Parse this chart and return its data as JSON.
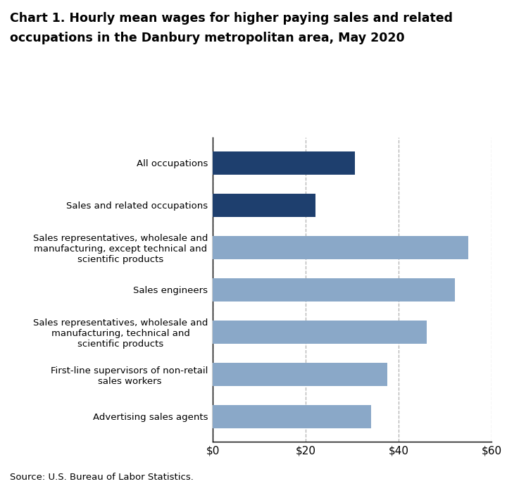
{
  "title_line1": "Chart 1. Hourly mean wages for higher paying sales and related",
  "title_line2": "occupations in the Danbury metropolitan area, May 2020",
  "categories": [
    "Advertising sales agents",
    "First-line supervisors of non-retail\nsales workers",
    "Sales representatives, wholesale and\nmanufacturing, technical and\nscientific products",
    "Sales engineers",
    "Sales representatives, wholesale and\nmanufacturing, except technical and\nscientific products",
    "Sales and related occupations",
    "All occupations"
  ],
  "values": [
    34.0,
    37.5,
    46.0,
    52.0,
    55.0,
    22.0,
    30.5
  ],
  "bar_colors": [
    "#8aa8c8",
    "#8aa8c8",
    "#8aa8c8",
    "#8aa8c8",
    "#8aa8c8",
    "#1e3f6e",
    "#1e3f6e"
  ],
  "xlim": [
    0,
    60
  ],
  "xticks": [
    0,
    20,
    40,
    60
  ],
  "xticklabels": [
    "$0",
    "$20",
    "$40",
    "$60"
  ],
  "source": "Source: U.S. Bureau of Labor Statistics.",
  "grid_color": "#b0b0b0",
  "background_color": "#ffffff",
  "bar_height": 0.55,
  "ytick_fontsize": 9.5,
  "xtick_fontsize": 11
}
